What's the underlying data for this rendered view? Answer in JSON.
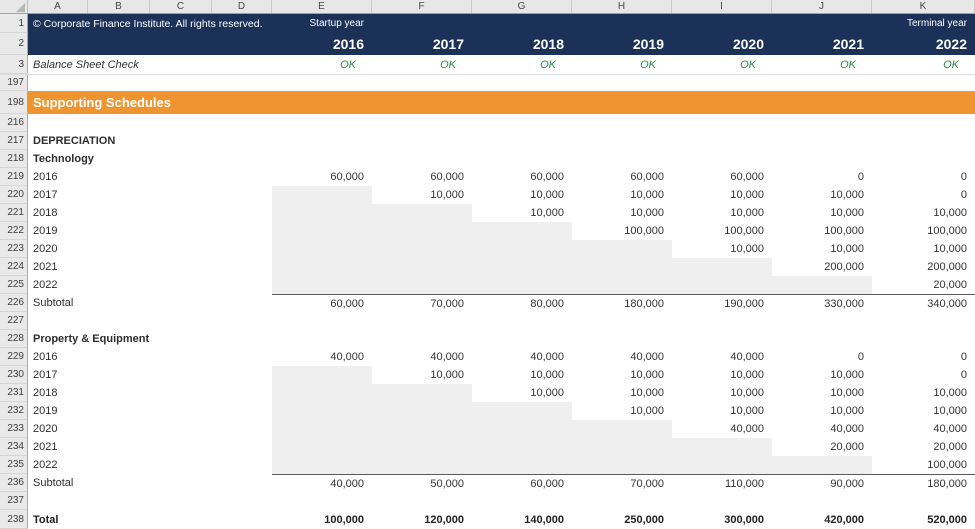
{
  "colors": {
    "header_navy": "#1B3157",
    "banner_orange": "#EE9430",
    "ok_green": "#2E8B46",
    "stair_gray": "#EFEFEF"
  },
  "column_headers": [
    "A",
    "B",
    "C",
    "D",
    "E",
    "F",
    "G",
    "H",
    "I",
    "J",
    "K"
  ],
  "sheet": {
    "rows": [
      {
        "num": "1",
        "type": "navy-top",
        "label": "© Corporate Finance Institute. All rights reserved.",
        "values": [
          "Startup year",
          "",
          "",
          "",
          "",
          "",
          "Terminal year"
        ]
      },
      {
        "num": "2",
        "type": "navy-years",
        "label": "",
        "values": [
          "2016",
          "2017",
          "2018",
          "2019",
          "2020",
          "2021",
          "2022"
        ]
      },
      {
        "num": "3",
        "type": "check",
        "label": "Balance Sheet Check",
        "values": [
          "OK",
          "OK",
          "OK",
          "OK",
          "OK",
          "OK",
          "OK"
        ]
      },
      {
        "num": "197",
        "type": "blank",
        "label": "",
        "values": [
          "",
          "",
          "",
          "",
          "",
          "",
          ""
        ]
      },
      {
        "num": "198",
        "type": "banner",
        "label": "Supporting Schedules"
      },
      {
        "num": "216",
        "type": "blank",
        "label": "",
        "values": [
          "",
          "",
          "",
          "",
          "",
          "",
          ""
        ]
      },
      {
        "num": "217",
        "type": "heading",
        "label": "DEPRECIATION",
        "values": [
          "",
          "",
          "",
          "",
          "",
          "",
          ""
        ]
      },
      {
        "num": "218",
        "type": "heading",
        "label": "Technology",
        "values": [
          "",
          "",
          "",
          "",
          "",
          "",
          ""
        ]
      },
      {
        "num": "219",
        "type": "year",
        "label": "2016",
        "gray": 0,
        "values": [
          "60,000",
          "60,000",
          "60,000",
          "60,000",
          "60,000",
          "0",
          "0"
        ]
      },
      {
        "num": "220",
        "type": "year",
        "label": "2017",
        "gray": 1,
        "values": [
          "",
          "10,000",
          "10,000",
          "10,000",
          "10,000",
          "10,000",
          "0"
        ]
      },
      {
        "num": "221",
        "type": "year",
        "label": "2018",
        "gray": 2,
        "values": [
          "",
          "",
          "10,000",
          "10,000",
          "10,000",
          "10,000",
          "10,000"
        ]
      },
      {
        "num": "222",
        "type": "year",
        "label": "2019",
        "gray": 3,
        "values": [
          "",
          "",
          "",
          "100,000",
          "100,000",
          "100,000",
          "100,000"
        ]
      },
      {
        "num": "223",
        "type": "year",
        "label": "2020",
        "gray": 4,
        "values": [
          "",
          "",
          "",
          "",
          "10,000",
          "10,000",
          "10,000"
        ]
      },
      {
        "num": "224",
        "type": "year",
        "label": "2021",
        "gray": 5,
        "values": [
          "",
          "",
          "",
          "",
          "",
          "200,000",
          "200,000"
        ]
      },
      {
        "num": "225",
        "type": "year",
        "label": "2022",
        "gray": 6,
        "values": [
          "",
          "",
          "",
          "",
          "",
          "",
          "20,000"
        ]
      },
      {
        "num": "226",
        "type": "subtotal",
        "label": "Subtotal",
        "values": [
          "60,000",
          "70,000",
          "80,000",
          "180,000",
          "190,000",
          "330,000",
          "340,000"
        ]
      },
      {
        "num": "227",
        "type": "blank",
        "label": "",
        "values": [
          "",
          "",
          "",
          "",
          "",
          "",
          ""
        ]
      },
      {
        "num": "228",
        "type": "heading",
        "label": "Property & Equipment",
        "values": [
          "",
          "",
          "",
          "",
          "",
          "",
          ""
        ]
      },
      {
        "num": "229",
        "type": "year",
        "label": "2016",
        "gray": 0,
        "values": [
          "40,000",
          "40,000",
          "40,000",
          "40,000",
          "40,000",
          "0",
          "0"
        ]
      },
      {
        "num": "230",
        "type": "year",
        "label": "2017",
        "gray": 1,
        "values": [
          "",
          "10,000",
          "10,000",
          "10,000",
          "10,000",
          "10,000",
          "0"
        ]
      },
      {
        "num": "231",
        "type": "year",
        "label": "2018",
        "gray": 2,
        "values": [
          "",
          "",
          "10,000",
          "10,000",
          "10,000",
          "10,000",
          "10,000"
        ]
      },
      {
        "num": "232",
        "type": "year",
        "label": "2019",
        "gray": 3,
        "values": [
          "",
          "",
          "",
          "10,000",
          "10,000",
          "10,000",
          "10,000"
        ]
      },
      {
        "num": "233",
        "type": "year",
        "label": "2020",
        "gray": 4,
        "values": [
          "",
          "",
          "",
          "",
          "40,000",
          "40,000",
          "40,000"
        ]
      },
      {
        "num": "234",
        "type": "year",
        "label": "2021",
        "gray": 5,
        "values": [
          "",
          "",
          "",
          "",
          "",
          "20,000",
          "20,000"
        ]
      },
      {
        "num": "235",
        "type": "year",
        "label": "2022",
        "gray": 6,
        "values": [
          "",
          "",
          "",
          "",
          "",
          "",
          "100,000"
        ]
      },
      {
        "num": "236",
        "type": "subtotal",
        "label": "Subtotal",
        "values": [
          "40,000",
          "50,000",
          "60,000",
          "70,000",
          "110,000",
          "90,000",
          "180,000"
        ]
      },
      {
        "num": "237",
        "type": "blank",
        "label": "",
        "values": [
          "",
          "",
          "",
          "",
          "",
          "",
          ""
        ]
      },
      {
        "num": "238",
        "type": "total",
        "label": "Total",
        "values": [
          "100,000",
          "120,000",
          "140,000",
          "250,000",
          "300,000",
          "420,000",
          "520,000"
        ]
      }
    ]
  }
}
